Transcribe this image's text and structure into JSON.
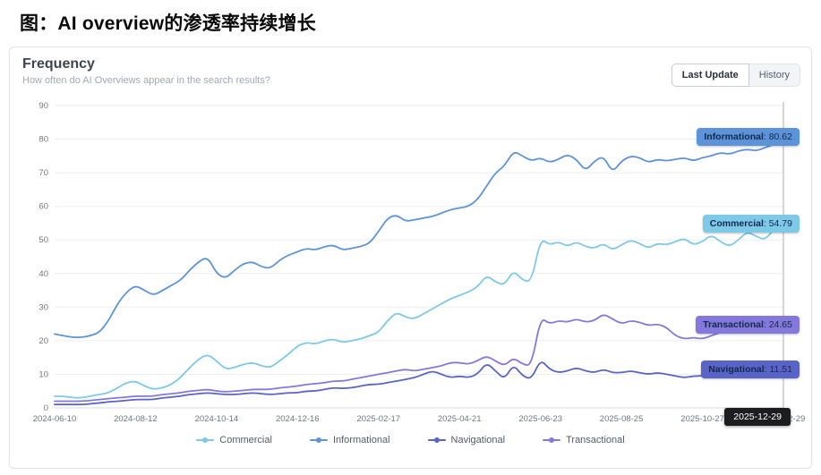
{
  "page": {
    "title": "图：AI overview的渗透率持续增长"
  },
  "panel": {
    "heading": "Frequency",
    "subtitle": "How often do AI Overviews appear in the search results?",
    "buttons": {
      "last_update": "Last Update",
      "history": "History"
    },
    "tooltip": "2025-12-29"
  },
  "chart_data": {
    "type": "line",
    "title": "Frequency",
    "xlabel": "",
    "ylabel": "",
    "ylim": [
      0,
      90
    ],
    "grid": "horizontal",
    "legend_position": "bottom",
    "y_ticks": [
      0,
      10,
      20,
      30,
      40,
      50,
      60,
      70,
      80,
      90
    ],
    "x_tick_labels": [
      "2024-06-10",
      "2024-08-12",
      "2024-10-14",
      "2024-12-16",
      "2025-02-17",
      "2025-04-21",
      "2025-06-23",
      "2025-08-25",
      "2025-10-27",
      "2025-12-29"
    ],
    "x_tick_indices": [
      0,
      9,
      18,
      27,
      36,
      45,
      54,
      63,
      72,
      81
    ],
    "points_per_series": 82,
    "series": [
      {
        "name": "Commercial",
        "color": "#7ec8e8",
        "end_value": 54.79,
        "values": [
          3.5,
          3.5,
          3,
          3,
          3.5,
          4,
          4.5,
          6,
          7.5,
          8,
          6.5,
          5.5,
          6,
          7,
          9,
          12,
          14.5,
          16,
          14,
          11.5,
          12,
          13,
          13.5,
          12.5,
          12,
          14,
          16,
          18.5,
          19.5,
          19,
          20,
          20.5,
          19.5,
          20,
          20.5,
          21.5,
          22.5,
          26,
          28.5,
          27,
          26.5,
          28,
          29.5,
          31,
          32.5,
          33.5,
          34.5,
          36,
          39.5,
          37.5,
          36.5,
          41,
          38,
          37.5,
          50.5,
          48.5,
          49.5,
          48,
          49.5,
          48,
          47.5,
          49,
          47,
          48.5,
          50,
          49,
          47.5,
          49,
          48.5,
          49.5,
          50.5,
          48.5,
          49.5,
          51.5,
          49.5,
          48,
          50,
          52.5,
          51,
          50,
          53.5,
          54.79
        ]
      },
      {
        "name": "Informational",
        "color": "#5d93d8",
        "end_value": 80.62,
        "values": [
          22,
          21.5,
          21,
          21,
          21.5,
          22.5,
          26,
          31,
          34.5,
          36.5,
          35,
          33.5,
          35,
          36.5,
          38,
          41,
          43.5,
          45,
          40,
          38.5,
          41,
          43,
          43.5,
          42,
          41.5,
          44,
          45.5,
          46.5,
          47.5,
          47,
          48,
          48.5,
          47,
          47.5,
          48,
          49,
          52.5,
          56.5,
          57.5,
          55.5,
          56,
          56.5,
          57,
          58,
          59,
          59.5,
          60,
          62,
          66,
          70,
          72,
          76.5,
          75,
          73.5,
          74.5,
          73,
          74,
          75.5,
          74,
          70.5,
          73.5,
          75,
          70,
          73.5,
          75,
          74.5,
          73,
          74,
          73.5,
          74,
          74.5,
          73.5,
          74.5,
          75,
          76,
          75.5,
          76.5,
          77,
          76.5,
          77.5,
          78.5,
          80.62
        ]
      },
      {
        "name": "Navigational",
        "color": "#5a63c8",
        "end_value": 11.51,
        "values": [
          1,
          1,
          1,
          1,
          1.2,
          1.5,
          1.8,
          2,
          2.2,
          2.5,
          2.5,
          2.5,
          3,
          3.2,
          3.5,
          4,
          4.2,
          4.5,
          4.2,
          4,
          4,
          4.2,
          4.5,
          4.2,
          4,
          4.2,
          4.5,
          4.5,
          5,
          5,
          5.5,
          6,
          5.8,
          6,
          6.5,
          7,
          7,
          7.5,
          8,
          8.5,
          9,
          10,
          11,
          10,
          9,
          9.5,
          9,
          10,
          13.5,
          11,
          8.5,
          13,
          9.5,
          8.5,
          14.5,
          11.5,
          10.5,
          11,
          12,
          11,
          10.5,
          11.5,
          10.5,
          10.5,
          11,
          10.5,
          10,
          10.5,
          10,
          9.5,
          9,
          9.5,
          9.5,
          10,
          9.5,
          9,
          9.5,
          10,
          9.5,
          9,
          10,
          11.51
        ]
      },
      {
        "name": "Transactional",
        "color": "#8578dc",
        "end_value": 24.65,
        "values": [
          2,
          2,
          2,
          2,
          2.2,
          2.5,
          2.8,
          3,
          3.2,
          3.5,
          3.5,
          3.5,
          4,
          4.2,
          4.5,
          5,
          5.2,
          5.5,
          5,
          4.8,
          5,
          5.2,
          5.5,
          5.5,
          5.5,
          6,
          6.2,
          6.5,
          7,
          7.2,
          7.5,
          8,
          8,
          8.5,
          9,
          9.5,
          10,
          10.5,
          11,
          11.5,
          11,
          11.5,
          12,
          12.5,
          13.5,
          13.5,
          13,
          14,
          15.5,
          14,
          12.5,
          15,
          13,
          12.5,
          27,
          25,
          26,
          25.5,
          26.5,
          25.5,
          26,
          28,
          26.5,
          25,
          26,
          25.5,
          24.5,
          25,
          24,
          21.5,
          20.5,
          21,
          20.5,
          21.5,
          22.5,
          23,
          22.5,
          23.5,
          24,
          23.5,
          24,
          24.65
        ]
      }
    ]
  },
  "legend": {
    "items": [
      {
        "label": "Commercial"
      },
      {
        "label": "Informational"
      },
      {
        "label": "Navigational"
      },
      {
        "label": "Transactional"
      }
    ]
  }
}
